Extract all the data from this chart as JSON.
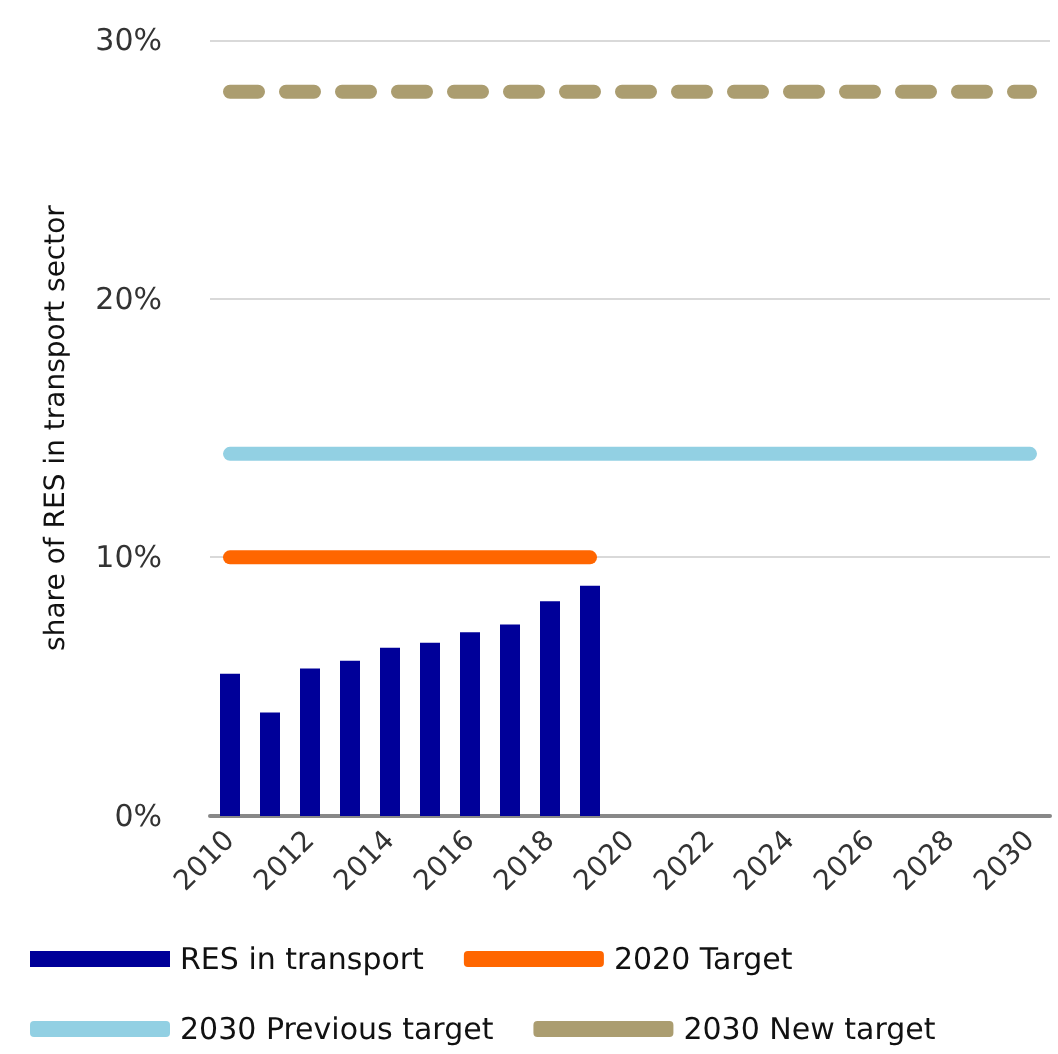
{
  "chart_data": {
    "type": "bar",
    "ylabel": "share of RES in transport sector",
    "categories": [
      "2010",
      null,
      "2012",
      null,
      "2014",
      null,
      "2016",
      null,
      "2018",
      null,
      "2020",
      null,
      "2022",
      null,
      "2024",
      null,
      "2026",
      null,
      "2028",
      null,
      "2030"
    ],
    "series": [
      {
        "name": "RES in transport",
        "color": "#000099",
        "values": [
          5.5,
          4.0,
          5.7,
          6.0,
          6.5,
          6.7,
          7.1,
          7.4,
          8.3,
          8.9,
          null,
          null,
          null,
          null,
          null,
          null,
          null,
          null,
          null,
          null,
          null
        ]
      },
      {
        "name": "2020 Target",
        "type": "line",
        "color": "#ff6600",
        "line_style": "solid",
        "values": [
          10,
          10,
          10,
          10,
          10,
          10,
          10,
          10,
          10,
          10,
          null,
          null,
          null,
          null,
          null,
          null,
          null,
          null,
          null,
          null,
          null
        ]
      },
      {
        "name": "2030 Previous target",
        "type": "line",
        "color": "#92d0e3",
        "line_style": "solid",
        "values": [
          14,
          14,
          14,
          14,
          14,
          14,
          14,
          14,
          14,
          14,
          14,
          14,
          14,
          14,
          14,
          14,
          14,
          14,
          14,
          14,
          14
        ]
      },
      {
        "name": "2030 New target",
        "type": "line",
        "color": "#ab9d70",
        "line_style": "dashed",
        "values": [
          28,
          28,
          28,
          28,
          28,
          28,
          28,
          28,
          28,
          28,
          28,
          28,
          28,
          28,
          28,
          28,
          28,
          28,
          28,
          28,
          28
        ]
      }
    ],
    "ylim": [
      0,
      30
    ],
    "yticks": [
      {
        "value": 0,
        "label": "0%"
      },
      {
        "value": 10,
        "label": "10%"
      },
      {
        "value": 20,
        "label": "20%"
      },
      {
        "value": 30,
        "label": "30%"
      }
    ],
    "grid": "y",
    "legend": "bottom",
    "marker": "none"
  }
}
